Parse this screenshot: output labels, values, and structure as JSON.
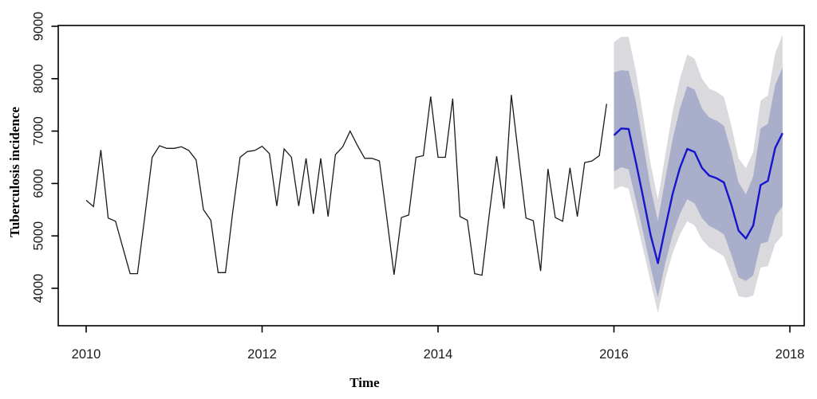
{
  "figure": {
    "xlabel": "Time",
    "ylabel": "Tuberculosis incidence",
    "x_tick_labels": [
      "2010",
      "2012",
      "2014",
      "2016",
      "2018"
    ],
    "y_tick_labels": [
      "4000",
      "5000",
      "6000",
      "7000",
      "8000",
      "9000"
    ]
  },
  "colors": {
    "background": "#ffffff",
    "axis": "#000000",
    "tick_text": "#1a1a1a",
    "history_line": "#1a1a1a",
    "forecast_line": "#1515cd",
    "band_80": "#a9aeca",
    "band_95": "#d9d9de"
  },
  "chart_data": {
    "type": "line",
    "title": "",
    "xlabel": "Time",
    "ylabel": "Tuberculosis incidence",
    "x_ticks": [
      2010,
      2012,
      2014,
      2016,
      2018
    ],
    "y_ticks": [
      4000,
      5000,
      6000,
      7000,
      8000,
      9000
    ],
    "xlim": [
      2009.68,
      2018.16
    ],
    "ylim": [
      3290,
      9015
    ],
    "grid": false,
    "legend_position": "none",
    "frequency": "monthly",
    "series": [
      {
        "name": "observed",
        "start": "2010-01",
        "values": [
          5680,
          5560,
          6640,
          5340,
          5280,
          4780,
          4280,
          4280,
          5370,
          6500,
          6720,
          6670,
          6670,
          6700,
          6630,
          6450,
          5500,
          5300,
          4300,
          4300,
          5470,
          6500,
          6610,
          6630,
          6710,
          6570,
          5570,
          6660,
          6500,
          5570,
          6480,
          5420,
          6480,
          5370,
          6550,
          6700,
          7000,
          6730,
          6480,
          6480,
          6430,
          5360,
          4260,
          5350,
          5400,
          6500,
          6530,
          7660,
          6500,
          6500,
          7620,
          5370,
          5300,
          4280,
          4250,
          5420,
          6520,
          5520,
          7690,
          6500,
          5340,
          5290,
          4330,
          6280,
          5350,
          5280,
          6300,
          5370,
          6400,
          6430,
          6530,
          7520
        ]
      },
      {
        "name": "forecast-mean",
        "start": "2016-01",
        "values": [
          6920,
          7050,
          7040,
          6400,
          5720,
          5020,
          4480,
          5150,
          5800,
          6300,
          6660,
          6600,
          6300,
          6150,
          6100,
          6020,
          5600,
          5100,
          4950,
          5200,
          5970,
          6050,
          6680,
          6960
        ]
      },
      {
        "name": "lo80",
        "start": "2016-01",
        "values": [
          6230,
          6310,
          6270,
          5680,
          5050,
          4410,
          3830,
          4480,
          5020,
          5420,
          5700,
          5620,
          5340,
          5190,
          5120,
          5030,
          4650,
          4210,
          4140,
          4250,
          4850,
          4890,
          5370,
          5570
        ]
      },
      {
        "name": "hi80",
        "start": "2016-01",
        "values": [
          8120,
          8160,
          8150,
          7550,
          6750,
          5920,
          5290,
          6080,
          6840,
          7430,
          7860,
          7790,
          7430,
          7260,
          7200,
          7100,
          6610,
          6020,
          5790,
          6140,
          7050,
          7140,
          7880,
          8210
        ]
      },
      {
        "name": "lo95",
        "start": "2016-01",
        "values": [
          5880,
          5950,
          5900,
          5330,
          4730,
          4130,
          3530,
          4170,
          4670,
          5030,
          5280,
          5200,
          4930,
          4780,
          4700,
          4610,
          4250,
          3850,
          3820,
          3860,
          4400,
          4420,
          4850,
          5010
        ]
      },
      {
        "name": "hi95",
        "start": "2016-01",
        "values": [
          8700,
          8800,
          8800,
          8130,
          7260,
          6380,
          5690,
          6540,
          7370,
          8000,
          8460,
          8380,
          8000,
          7810,
          7750,
          7650,
          7110,
          6480,
          6290,
          6600,
          7580,
          7680,
          8480,
          8840
        ]
      }
    ]
  }
}
